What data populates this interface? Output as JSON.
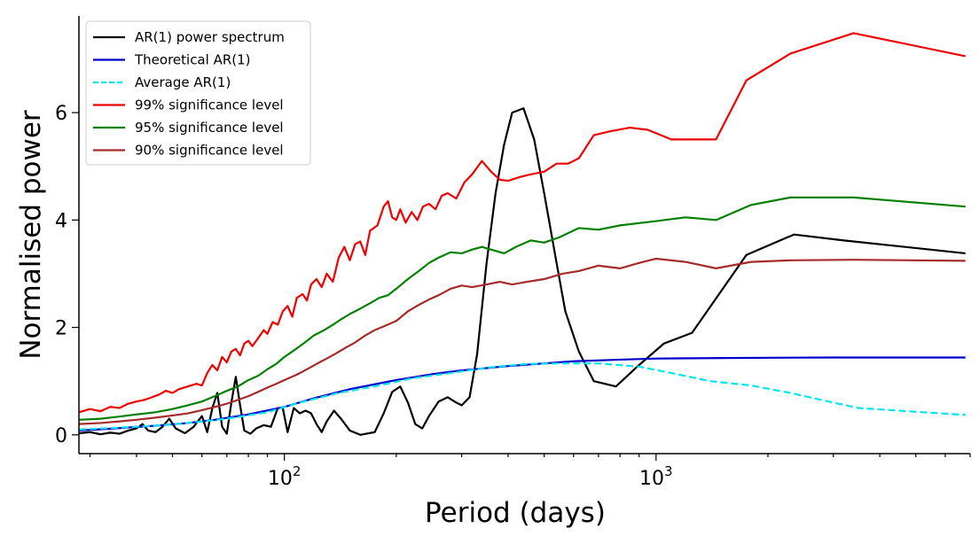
{
  "chart_data": {
    "type": "line",
    "xlabel": "Period (days)",
    "ylabel": "Normalised power",
    "x_scale": "log",
    "xlim": [
      28,
      7000
    ],
    "ylim": [
      -0.35,
      7.8
    ],
    "x_ticks": [
      {
        "value": 100,
        "base": "10",
        "exp": "2"
      },
      {
        "value": 1000,
        "base": "10",
        "exp": "3"
      }
    ],
    "y_ticks": [
      0,
      2,
      4,
      6
    ],
    "grid": false,
    "legend_position": "top-left",
    "series": [
      {
        "name": "AR(1) power spectrum",
        "color": "#000000",
        "dash": "solid",
        "points": [
          [
            28,
            0.03
          ],
          [
            30,
            0.05
          ],
          [
            32,
            0.01
          ],
          [
            34,
            0.04
          ],
          [
            36,
            0.02
          ],
          [
            38,
            0.08
          ],
          [
            40,
            0.12
          ],
          [
            41.5,
            0.2
          ],
          [
            43,
            0.08
          ],
          [
            45,
            0.05
          ],
          [
            47,
            0.15
          ],
          [
            49,
            0.3
          ],
          [
            51,
            0.12
          ],
          [
            54,
            0.03
          ],
          [
            57,
            0.15
          ],
          [
            60,
            0.35
          ],
          [
            62,
            0.05
          ],
          [
            64,
            0.5
          ],
          [
            66,
            0.78
          ],
          [
            68,
            0.15
          ],
          [
            70,
            0.02
          ],
          [
            72,
            0.6
          ],
          [
            74,
            1.08
          ],
          [
            76,
            0.55
          ],
          [
            78,
            0.08
          ],
          [
            81,
            0.02
          ],
          [
            84,
            0.12
          ],
          [
            88,
            0.18
          ],
          [
            92,
            0.15
          ],
          [
            96,
            0.5
          ],
          [
            99,
            0.5
          ],
          [
            102,
            0.05
          ],
          [
            106,
            0.5
          ],
          [
            110,
            0.4
          ],
          [
            114,
            0.45
          ],
          [
            118,
            0.4
          ],
          [
            122,
            0.2
          ],
          [
            126,
            0.05
          ],
          [
            130,
            0.25
          ],
          [
            136,
            0.45
          ],
          [
            142,
            0.3
          ],
          [
            150,
            0.08
          ],
          [
            160,
            0.0
          ],
          [
            175,
            0.05
          ],
          [
            185,
            0.4
          ],
          [
            195,
            0.8
          ],
          [
            205,
            0.9
          ],
          [
            215,
            0.6
          ],
          [
            225,
            0.2
          ],
          [
            235,
            0.12
          ],
          [
            245,
            0.35
          ],
          [
            260,
            0.62
          ],
          [
            275,
            0.7
          ],
          [
            290,
            0.6
          ],
          [
            300,
            0.55
          ],
          [
            315,
            0.7
          ],
          [
            330,
            1.5
          ],
          [
            350,
            3.2
          ],
          [
            370,
            4.5
          ],
          [
            390,
            5.4
          ],
          [
            410,
            6.0
          ],
          [
            440,
            6.08
          ],
          [
            470,
            5.5
          ],
          [
            500,
            4.5
          ],
          [
            540,
            3.2
          ],
          [
            570,
            2.3
          ],
          [
            620,
            1.55
          ],
          [
            680,
            1.0
          ],
          [
            780,
            0.9
          ],
          [
            900,
            1.3
          ],
          [
            1050,
            1.7
          ],
          [
            1250,
            1.9
          ],
          [
            1750,
            3.35
          ],
          [
            2350,
            3.73
          ],
          [
            3200,
            3.62
          ],
          [
            6800,
            3.38
          ]
        ]
      },
      {
        "name": "Theoretical AR(1)",
        "color": "#0000cc",
        "dash": "solid",
        "points": [
          [
            28,
            0.08
          ],
          [
            35,
            0.12
          ],
          [
            45,
            0.17
          ],
          [
            55,
            0.22
          ],
          [
            65,
            0.28
          ],
          [
            80,
            0.38
          ],
          [
            100,
            0.52
          ],
          [
            120,
            0.68
          ],
          [
            150,
            0.85
          ],
          [
            200,
            1.02
          ],
          [
            250,
            1.13
          ],
          [
            300,
            1.2
          ],
          [
            400,
            1.28
          ],
          [
            500,
            1.33
          ],
          [
            600,
            1.37
          ],
          [
            800,
            1.4
          ],
          [
            1000,
            1.42
          ],
          [
            1500,
            1.43
          ],
          [
            2000,
            1.435
          ],
          [
            3000,
            1.44
          ],
          [
            6800,
            1.44
          ]
        ]
      },
      {
        "name": "Average AR(1)",
        "color": "#00e5ee",
        "dash": "dashed",
        "points": [
          [
            28,
            0.1
          ],
          [
            35,
            0.13
          ],
          [
            45,
            0.17
          ],
          [
            55,
            0.22
          ],
          [
            70,
            0.3
          ],
          [
            90,
            0.42
          ],
          [
            110,
            0.6
          ],
          [
            140,
            0.78
          ],
          [
            180,
            0.92
          ],
          [
            220,
            1.05
          ],
          [
            280,
            1.15
          ],
          [
            350,
            1.25
          ],
          [
            450,
            1.32
          ],
          [
            550,
            1.33
          ],
          [
            700,
            1.33
          ],
          [
            900,
            1.27
          ],
          [
            1100,
            1.15
          ],
          [
            1400,
            1.0
          ],
          [
            1800,
            0.92
          ],
          [
            2300,
            0.78
          ],
          [
            3000,
            0.6
          ],
          [
            3500,
            0.5
          ],
          [
            4500,
            0.45
          ],
          [
            6800,
            0.37
          ]
        ]
      },
      {
        "name": "99% significance level",
        "color": "#ee0000",
        "dash": "solid",
        "points": [
          [
            28,
            0.42
          ],
          [
            30,
            0.48
          ],
          [
            32,
            0.44
          ],
          [
            34,
            0.52
          ],
          [
            36,
            0.5
          ],
          [
            38,
            0.58
          ],
          [
            40,
            0.62
          ],
          [
            42,
            0.65
          ],
          [
            44,
            0.7
          ],
          [
            46,
            0.75
          ],
          [
            48,
            0.82
          ],
          [
            50,
            0.78
          ],
          [
            52,
            0.85
          ],
          [
            55,
            0.9
          ],
          [
            58,
            0.95
          ],
          [
            60,
            0.92
          ],
          [
            62,
            1.15
          ],
          [
            64,
            1.3
          ],
          [
            66,
            1.2
          ],
          [
            68,
            1.45
          ],
          [
            70,
            1.35
          ],
          [
            72,
            1.55
          ],
          [
            74,
            1.6
          ],
          [
            76,
            1.48
          ],
          [
            78,
            1.7
          ],
          [
            80,
            1.75
          ],
          [
            82,
            1.65
          ],
          [
            85,
            1.8
          ],
          [
            88,
            1.95
          ],
          [
            90,
            1.88
          ],
          [
            93,
            2.1
          ],
          [
            96,
            2.05
          ],
          [
            99,
            2.3
          ],
          [
            102,
            2.4
          ],
          [
            105,
            2.2
          ],
          [
            108,
            2.55
          ],
          [
            112,
            2.62
          ],
          [
            115,
            2.5
          ],
          [
            118,
            2.8
          ],
          [
            122,
            2.9
          ],
          [
            126,
            2.75
          ],
          [
            130,
            3.0
          ],
          [
            135,
            2.85
          ],
          [
            140,
            3.3
          ],
          [
            145,
            3.5
          ],
          [
            150,
            3.25
          ],
          [
            155,
            3.55
          ],
          [
            160,
            3.6
          ],
          [
            165,
            3.35
          ],
          [
            170,
            3.8
          ],
          [
            178,
            3.9
          ],
          [
            185,
            4.25
          ],
          [
            190,
            4.35
          ],
          [
            195,
            4.05
          ],
          [
            200,
            4.0
          ],
          [
            205,
            4.2
          ],
          [
            212,
            3.95
          ],
          [
            220,
            4.15
          ],
          [
            228,
            4.0
          ],
          [
            236,
            4.25
          ],
          [
            245,
            4.3
          ],
          [
            255,
            4.2
          ],
          [
            265,
            4.45
          ],
          [
            275,
            4.5
          ],
          [
            290,
            4.4
          ],
          [
            305,
            4.7
          ],
          [
            320,
            4.85
          ],
          [
            340,
            5.1
          ],
          [
            360,
            4.9
          ],
          [
            380,
            4.75
          ],
          [
            400,
            4.73
          ],
          [
            430,
            4.8
          ],
          [
            460,
            4.85
          ],
          [
            500,
            4.9
          ],
          [
            540,
            5.05
          ],
          [
            580,
            5.05
          ],
          [
            620,
            5.15
          ],
          [
            680,
            5.58
          ],
          [
            750,
            5.65
          ],
          [
            850,
            5.72
          ],
          [
            950,
            5.68
          ],
          [
            1100,
            5.5
          ],
          [
            1250,
            5.5
          ],
          [
            1450,
            5.5
          ],
          [
            1750,
            6.6
          ],
          [
            2300,
            7.1
          ],
          [
            3400,
            7.48
          ],
          [
            6800,
            7.05
          ]
        ]
      },
      {
        "name": "95% significance level",
        "color": "#008000",
        "dash": "solid",
        "points": [
          [
            28,
            0.28
          ],
          [
            32,
            0.3
          ],
          [
            36,
            0.34
          ],
          [
            40,
            0.38
          ],
          [
            45,
            0.42
          ],
          [
            50,
            0.48
          ],
          [
            55,
            0.55
          ],
          [
            60,
            0.62
          ],
          [
            65,
            0.72
          ],
          [
            70,
            0.82
          ],
          [
            75,
            0.9
          ],
          [
            80,
            1.02
          ],
          [
            85,
            1.1
          ],
          [
            90,
            1.22
          ],
          [
            95,
            1.32
          ],
          [
            100,
            1.45
          ],
          [
            105,
            1.55
          ],
          [
            110,
            1.65
          ],
          [
            115,
            1.75
          ],
          [
            120,
            1.85
          ],
          [
            128,
            1.95
          ],
          [
            135,
            2.05
          ],
          [
            142,
            2.15
          ],
          [
            150,
            2.25
          ],
          [
            160,
            2.35
          ],
          [
            170,
            2.45
          ],
          [
            180,
            2.55
          ],
          [
            190,
            2.6
          ],
          [
            200,
            2.72
          ],
          [
            215,
            2.9
          ],
          [
            230,
            3.05
          ],
          [
            245,
            3.2
          ],
          [
            260,
            3.3
          ],
          [
            280,
            3.4
          ],
          [
            300,
            3.38
          ],
          [
            320,
            3.45
          ],
          [
            340,
            3.5
          ],
          [
            360,
            3.45
          ],
          [
            390,
            3.38
          ],
          [
            420,
            3.5
          ],
          [
            460,
            3.62
          ],
          [
            500,
            3.58
          ],
          [
            550,
            3.68
          ],
          [
            620,
            3.85
          ],
          [
            700,
            3.82
          ],
          [
            800,
            3.9
          ],
          [
            1000,
            3.98
          ],
          [
            1200,
            4.05
          ],
          [
            1450,
            4.0
          ],
          [
            1800,
            4.28
          ],
          [
            2300,
            4.42
          ],
          [
            3400,
            4.42
          ],
          [
            6800,
            4.25
          ]
        ]
      },
      {
        "name": "90% significance level",
        "color": "#a52a2a",
        "dash": "solid",
        "points": [
          [
            28,
            0.2
          ],
          [
            32,
            0.22
          ],
          [
            36,
            0.25
          ],
          [
            40,
            0.28
          ],
          [
            45,
            0.32
          ],
          [
            50,
            0.36
          ],
          [
            55,
            0.4
          ],
          [
            60,
            0.46
          ],
          [
            65,
            0.52
          ],
          [
            70,
            0.58
          ],
          [
            75,
            0.65
          ],
          [
            80,
            0.72
          ],
          [
            85,
            0.8
          ],
          [
            90,
            0.88
          ],
          [
            95,
            0.95
          ],
          [
            100,
            1.02
          ],
          [
            108,
            1.12
          ],
          [
            115,
            1.22
          ],
          [
            122,
            1.32
          ],
          [
            130,
            1.42
          ],
          [
            138,
            1.52
          ],
          [
            146,
            1.62
          ],
          [
            155,
            1.72
          ],
          [
            165,
            1.85
          ],
          [
            175,
            1.95
          ],
          [
            185,
            2.02
          ],
          [
            200,
            2.12
          ],
          [
            215,
            2.3
          ],
          [
            230,
            2.42
          ],
          [
            245,
            2.52
          ],
          [
            260,
            2.6
          ],
          [
            280,
            2.72
          ],
          [
            300,
            2.78
          ],
          [
            320,
            2.75
          ],
          [
            350,
            2.8
          ],
          [
            380,
            2.85
          ],
          [
            410,
            2.8
          ],
          [
            450,
            2.85
          ],
          [
            500,
            2.9
          ],
          [
            560,
            3.0
          ],
          [
            620,
            3.05
          ],
          [
            700,
            3.15
          ],
          [
            800,
            3.1
          ],
          [
            900,
            3.2
          ],
          [
            1000,
            3.28
          ],
          [
            1200,
            3.22
          ],
          [
            1450,
            3.1
          ],
          [
            1800,
            3.22
          ],
          [
            2300,
            3.25
          ],
          [
            3400,
            3.26
          ],
          [
            6800,
            3.24
          ]
        ]
      }
    ]
  }
}
